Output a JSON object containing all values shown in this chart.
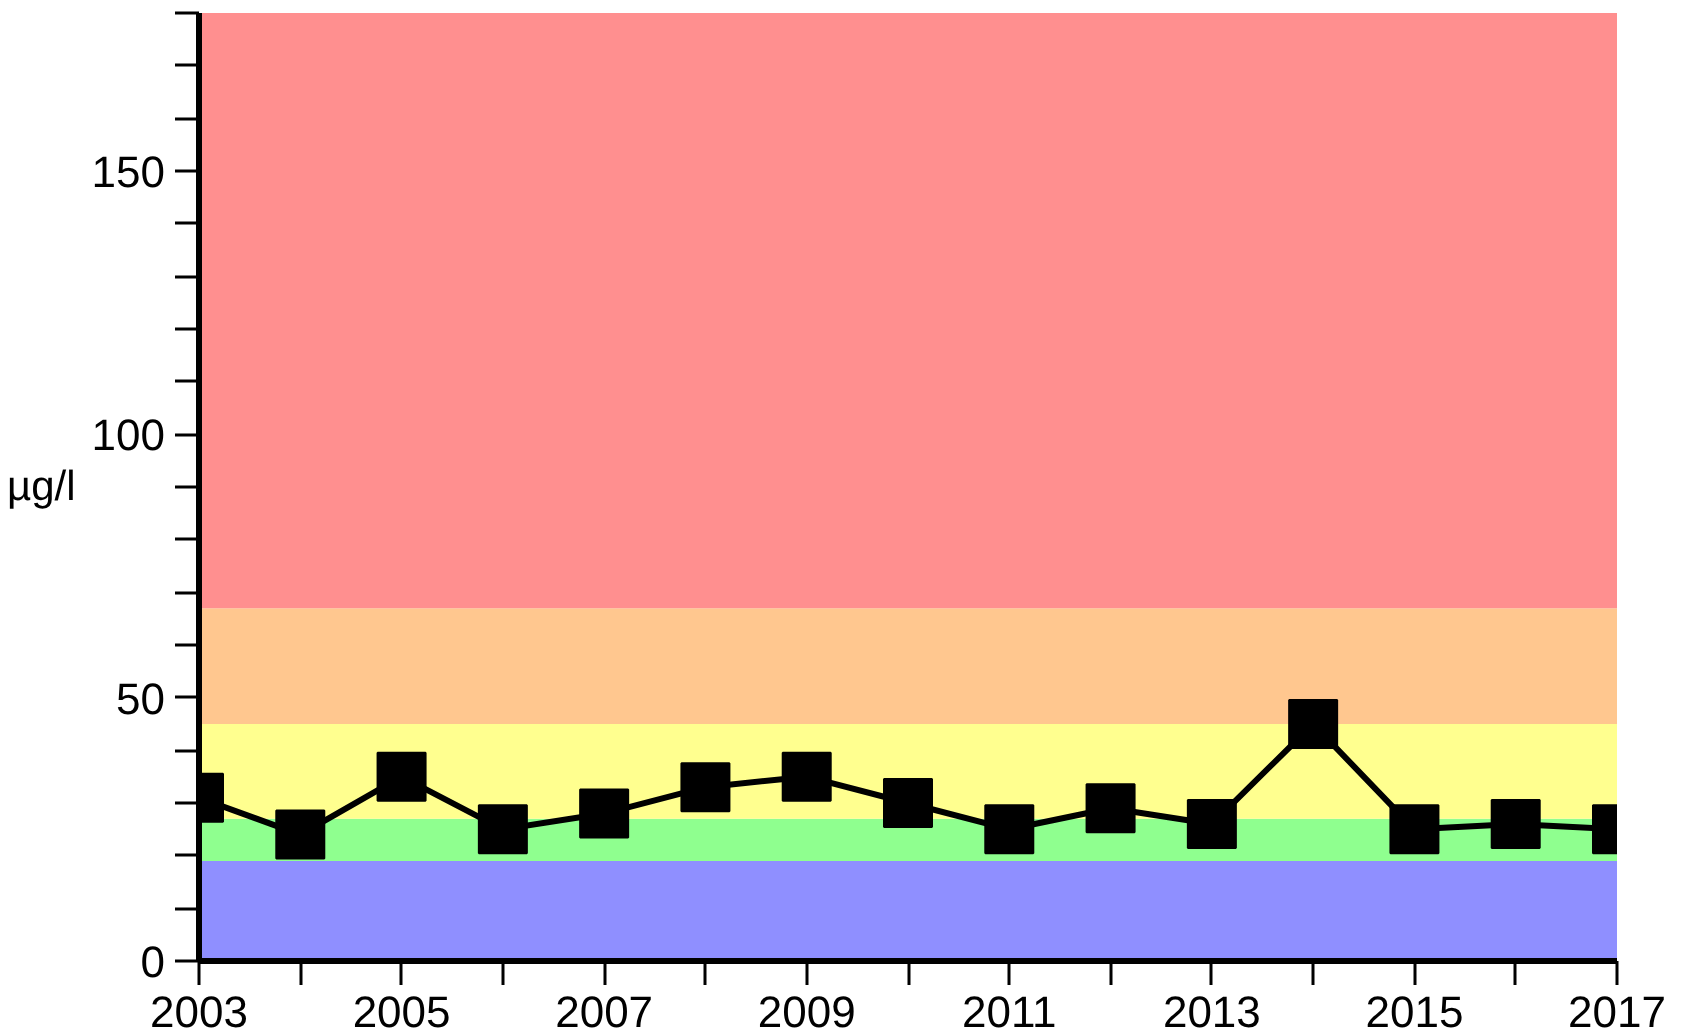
{
  "chart_data": {
    "type": "line",
    "ylabel": "µg/l",
    "x": [
      2003,
      2004,
      2005,
      2006,
      2007,
      2008,
      2009,
      2010,
      2011,
      2012,
      2013,
      2014,
      2015,
      2016,
      2017
    ],
    "series": [
      {
        "color": "#000000",
        "values": [
          31,
          24,
          35,
          25,
          28,
          33,
          35,
          30,
          25,
          29,
          26,
          45,
          25,
          26,
          25
        ]
      }
    ],
    "marker": "square",
    "line_style": "solid",
    "xlim": [
      2003,
      2017
    ],
    "ylim": [
      0,
      180
    ],
    "xticks": [
      2003,
      {
        "value": 2004,
        "label": null
      },
      2005,
      {
        "value": 2006,
        "label": null
      },
      2007,
      {
        "value": 2008,
        "label": null
      },
      2009,
      {
        "value": 2010,
        "label": null
      },
      2011,
      {
        "value": 2012,
        "label": null
      },
      2013,
      {
        "value": 2014,
        "label": null
      },
      2015,
      {
        "value": 2016,
        "label": null
      },
      2017
    ],
    "yticks": [
      0,
      {
        "value": 10,
        "label": null
      },
      {
        "value": 20,
        "label": null
      },
      {
        "value": 30,
        "label": null
      },
      {
        "value": 40,
        "label": null
      },
      50,
      {
        "value": 60,
        "label": null
      },
      {
        "value": 70,
        "label": null
      },
      {
        "value": 80,
        "label": null
      },
      {
        "value": 90,
        "label": null
      },
      100,
      {
        "value": 110,
        "label": null
      },
      {
        "value": 120,
        "label": null
      },
      {
        "value": 130,
        "label": null
      },
      {
        "value": 140,
        "label": null
      },
      150,
      {
        "value": 160,
        "label": null
      },
      {
        "value": 170,
        "label": null
      },
      {
        "value": 180,
        "label": null
      }
    ],
    "bands": [
      {
        "axis": "y",
        "from": 0,
        "to": 19,
        "color": "#8f8fff"
      },
      {
        "axis": "y",
        "from": 19,
        "to": 27,
        "color": "#8fff8f"
      },
      {
        "axis": "y",
        "from": 27,
        "to": 45,
        "color": "#ffff8f"
      },
      {
        "axis": "y",
        "from": 45,
        "to": 67,
        "color": "#ffc78f"
      },
      {
        "axis": "y",
        "from": 67,
        "to": 180,
        "color": "#ff8f8f"
      }
    ]
  }
}
